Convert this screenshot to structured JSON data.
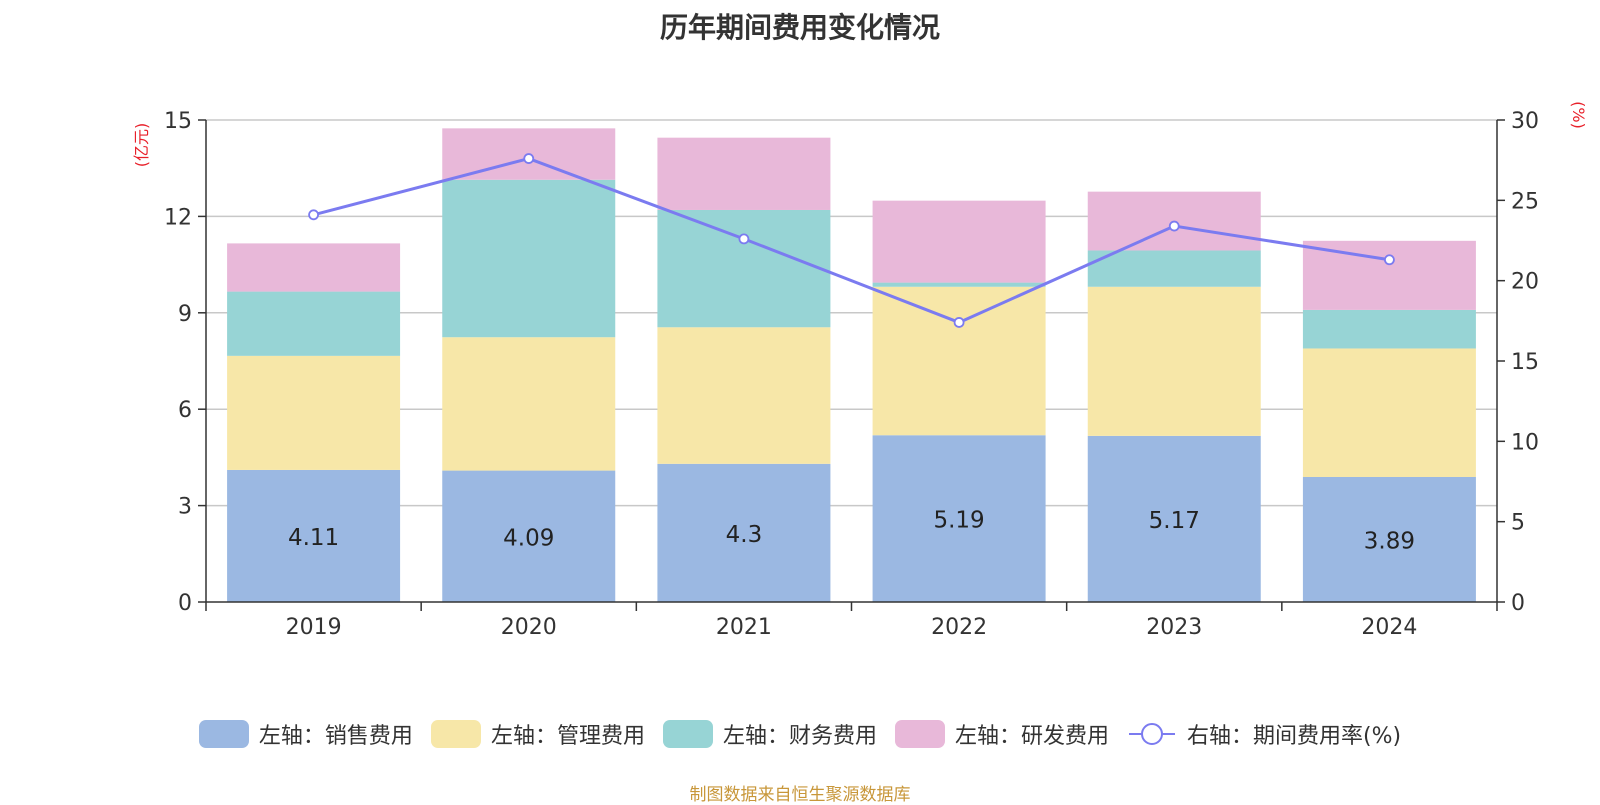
{
  "chart_data": {
    "type": "bar",
    "title": "历年期间费用变化情况",
    "left_axis_unit": "(亿元)",
    "right_axis_unit": "(%)",
    "categories": [
      "2019",
      "2020",
      "2021",
      "2022",
      "2023",
      "2024"
    ],
    "ylim_left": [
      0,
      15
    ],
    "yticks_left": [
      0,
      3,
      6,
      9,
      12,
      15
    ],
    "ylim_right": [
      0,
      30
    ],
    "yticks_right": [
      0,
      5,
      10,
      15,
      20,
      25,
      30
    ],
    "grid": true,
    "legend_position": "bottom",
    "series": [
      {
        "name": "左轴：销售费用",
        "type": "bar",
        "axis": "left",
        "color": "#9bb8e2",
        "values": [
          4.11,
          4.09,
          4.3,
          5.19,
          5.17,
          3.89
        ],
        "show_labels": true
      },
      {
        "name": "左轴：管理费用",
        "type": "bar",
        "axis": "left",
        "color": "#f7e7a8",
        "values": [
          3.55,
          4.15,
          4.25,
          4.62,
          4.64,
          4.0
        ]
      },
      {
        "name": "左轴：财务费用",
        "type": "bar",
        "axis": "left",
        "color": "#97d4d5",
        "values": [
          2.0,
          4.9,
          3.65,
          0.13,
          1.13,
          1.2
        ]
      },
      {
        "name": "左轴：研发费用",
        "type": "bar",
        "axis": "left",
        "color": "#e8b8d9",
        "values": [
          1.5,
          1.6,
          2.25,
          2.55,
          1.83,
          2.15
        ]
      },
      {
        "name": "右轴：期间费用率(%)",
        "type": "line",
        "axis": "right",
        "color": "#7b7bf0",
        "values": [
          24.1,
          27.6,
          22.6,
          17.4,
          23.4,
          21.3
        ]
      }
    ]
  },
  "source": "制图数据来自恒生聚源数据库"
}
